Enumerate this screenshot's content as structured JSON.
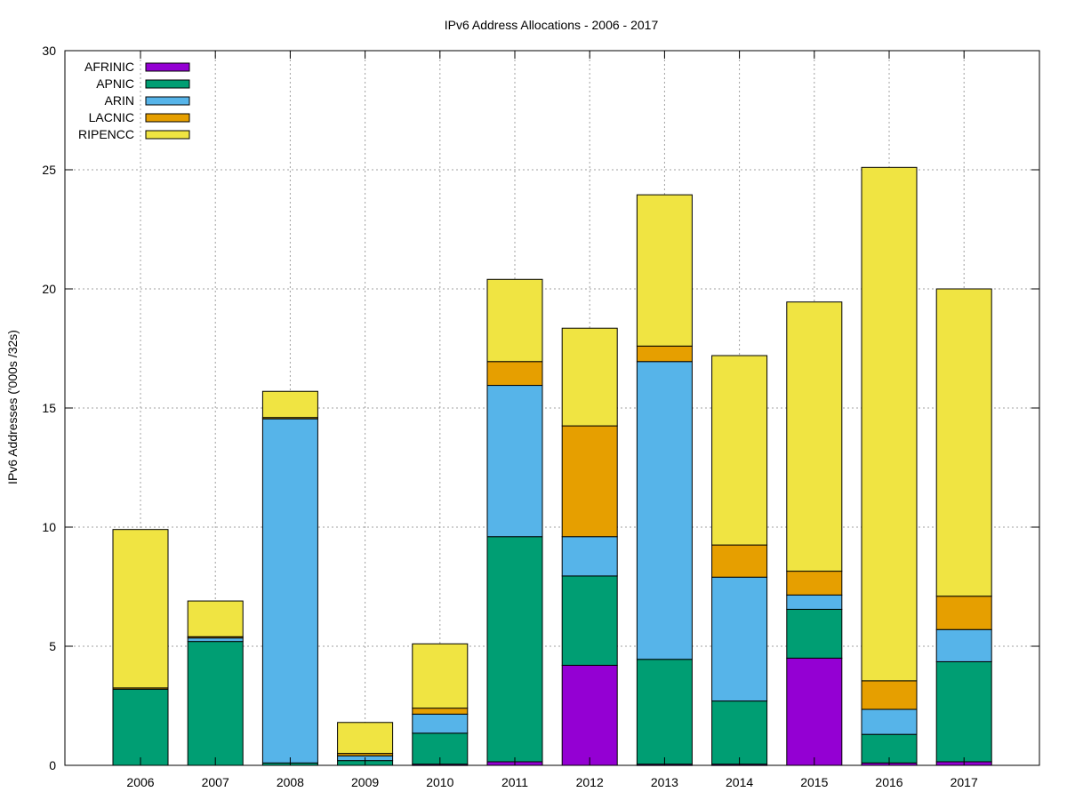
{
  "chart_data": {
    "type": "bar",
    "stacked": true,
    "title": "IPv6 Address Allocations - 2006 - 2017",
    "xlabel": "",
    "ylabel": "IPv6 Addresses ('000s /32s)",
    "ylim": [
      0,
      30
    ],
    "yticks": [
      "0",
      "5",
      "10",
      "15",
      "20",
      "25",
      "30"
    ],
    "grid": true,
    "legend_position": "top-left",
    "categories": [
      "2006",
      "2007",
      "2008",
      "2009",
      "2010",
      "2011",
      "2012",
      "2013",
      "2014",
      "2015",
      "2016",
      "2017"
    ],
    "series": [
      {
        "name": "AFRINIC",
        "color": "#9400d3",
        "values": [
          0.0,
          0.0,
          0.0,
          0.0,
          0.05,
          0.15,
          4.2,
          0.05,
          0.05,
          4.5,
          0.1,
          0.15
        ]
      },
      {
        "name": "APNIC",
        "color": "#009e73",
        "values": [
          3.2,
          5.2,
          0.1,
          0.2,
          1.3,
          9.45,
          3.75,
          4.4,
          2.65,
          2.05,
          1.2,
          4.2
        ]
      },
      {
        "name": "ARIN",
        "color": "#56b4e9",
        "values": [
          0.0,
          0.15,
          14.45,
          0.2,
          0.8,
          6.35,
          1.65,
          12.5,
          5.2,
          0.6,
          1.05,
          1.35
        ]
      },
      {
        "name": "LACNIC",
        "color": "#e69f00",
        "values": [
          0.05,
          0.05,
          0.05,
          0.1,
          0.25,
          1.0,
          4.65,
          0.65,
          1.35,
          1.0,
          1.2,
          1.4
        ]
      },
      {
        "name": "RIPENCC",
        "color": "#f0e442",
        "values": [
          6.65,
          1.5,
          1.1,
          1.3,
          2.7,
          3.45,
          4.1,
          6.35,
          7.95,
          11.3,
          21.55,
          12.9
        ]
      }
    ]
  }
}
